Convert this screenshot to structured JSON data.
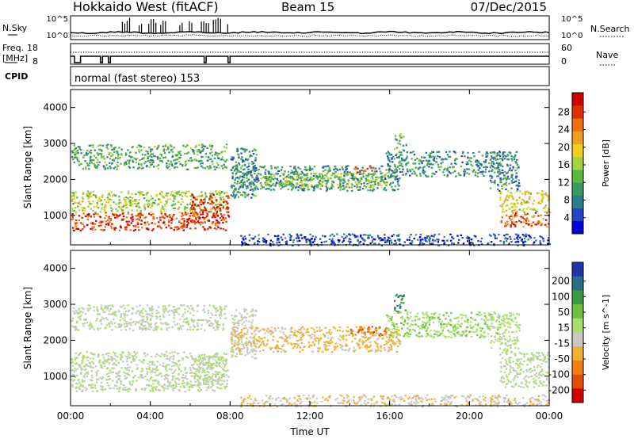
{
  "header": {
    "station": "Hokkaido West (fitACF)",
    "beam": "Beam 15",
    "date": "07/Dec/2015"
  },
  "strips": {
    "nsky_label": "N.Sky",
    "nsky_ticks": [
      "10^5",
      "10^0"
    ],
    "nsearch_label": "N.Search",
    "nsearch_ticks": [
      "10^5",
      "10^0"
    ],
    "freq_label_1": "Freq.",
    "freq_label_2": "[MHz]",
    "freq_ticks": [
      "18",
      "8"
    ],
    "nave_label": "Nave",
    "nave_ticks": [
      "60",
      "0"
    ],
    "cpid_label": "CPID",
    "cpid_text": "normal (fast stereo) 153"
  },
  "chart_data": [
    {
      "type": "heatmap",
      "title": "",
      "xlabel": "Time UT",
      "ylabel": "Slant Range [km]",
      "xlim": [
        0,
        24
      ],
      "ylim": [
        180,
        4500
      ],
      "xticks": [
        "00:00",
        "04:00",
        "08:00",
        "12:00",
        "16:00",
        "20:00",
        "00:00"
      ],
      "yticks": [
        "1000",
        "2000",
        "3000",
        "4000"
      ],
      "colorbar": {
        "label": "Power [dB]",
        "ticks": [
          "4",
          "8",
          "12",
          "16",
          "20",
          "24",
          "28"
        ],
        "colors": [
          "#0000dd",
          "#2244cc",
          "#2e7d8c",
          "#3c9a60",
          "#58b840",
          "#a8d040",
          "#f0d020",
          "#f0a020",
          "#f07010",
          "#e03000",
          "#d00000"
        ]
      },
      "regions": [
        {
          "t0": 0.0,
          "t1": 7.8,
          "r0": 600,
          "r1": 1100,
          "value": 26
        },
        {
          "t0": 0.0,
          "t1": 7.8,
          "r0": 1100,
          "r1": 1700,
          "value": 16
        },
        {
          "t0": 0.0,
          "t1": 7.8,
          "r0": 2300,
          "r1": 3000,
          "value": 12
        },
        {
          "t0": 6.0,
          "t1": 7.9,
          "r0": 800,
          "r1": 1600,
          "value": 27
        },
        {
          "t0": 8.0,
          "t1": 9.3,
          "r0": 1500,
          "r1": 2900,
          "value": 10
        },
        {
          "t0": 8.0,
          "t1": 16.5,
          "r0": 1700,
          "r1": 2400,
          "value": 10
        },
        {
          "t0": 9.5,
          "t1": 15.8,
          "r0": 1800,
          "r1": 2200,
          "value": 15
        },
        {
          "t0": 14.2,
          "t1": 15.2,
          "r0": 2200,
          "r1": 2400,
          "value": 24
        },
        {
          "t0": 15.8,
          "t1": 21.5,
          "r0": 2100,
          "r1": 2800,
          "value": 10
        },
        {
          "t0": 16.2,
          "t1": 16.8,
          "r0": 2800,
          "r1": 3300,
          "value": 12
        },
        {
          "t0": 8.5,
          "t1": 24.0,
          "r0": 180,
          "r1": 500,
          "value": 6
        },
        {
          "t0": 21.5,
          "t1": 24.0,
          "r0": 700,
          "r1": 1100,
          "value": 25
        },
        {
          "t0": 21.5,
          "t1": 24.0,
          "r0": 1100,
          "r1": 1700,
          "value": 18
        },
        {
          "t0": 21.0,
          "t1": 22.5,
          "r0": 1700,
          "r1": 2800,
          "value": 10
        }
      ]
    },
    {
      "type": "heatmap",
      "title": "",
      "xlabel": "Time UT",
      "ylabel": "Slant Range [km]",
      "xlim": [
        0,
        24
      ],
      "ylim": [
        180,
        4500
      ],
      "xticks": [
        "00:00",
        "04:00",
        "08:00",
        "12:00",
        "16:00",
        "20:00",
        "00:00"
      ],
      "yticks": [
        "1000",
        "2000",
        "3000",
        "4000"
      ],
      "colorbar": {
        "label": "Velocity [m s^-1]",
        "ticks": [
          "200",
          "100",
          "50",
          "15",
          "-15",
          "-50",
          "-100",
          "-200"
        ],
        "colors": [
          "#2233aa",
          "#2a6a8a",
          "#3a9a40",
          "#70c040",
          "#a8e070",
          "#c8c8c0",
          "#f0b030",
          "#f08010",
          "#e05000",
          "#d00000"
        ]
      },
      "regions": [
        {
          "t0": 0.0,
          "t1": 7.8,
          "r0": 600,
          "r1": 1700,
          "value": 0
        },
        {
          "t0": 0.0,
          "t1": 7.8,
          "r0": 2300,
          "r1": 3000,
          "value": -10
        },
        {
          "t0": 6.0,
          "t1": 7.9,
          "r0": 800,
          "r1": 1600,
          "value": 5
        },
        {
          "t0": 8.0,
          "t1": 9.3,
          "r0": 1500,
          "r1": 2900,
          "value": -20
        },
        {
          "t0": 8.0,
          "t1": 16.5,
          "r0": 1700,
          "r1": 2400,
          "value": -60
        },
        {
          "t0": 14.0,
          "t1": 15.8,
          "r0": 2150,
          "r1": 2400,
          "value": -150
        },
        {
          "t0": 15.8,
          "t1": 21.5,
          "r0": 2100,
          "r1": 2800,
          "value": 40
        },
        {
          "t0": 16.2,
          "t1": 16.8,
          "r0": 2800,
          "r1": 3300,
          "value": 150
        },
        {
          "t0": 8.5,
          "t1": 24.0,
          "r0": 180,
          "r1": 500,
          "value": -40
        },
        {
          "t0": 21.5,
          "t1": 24.0,
          "r0": 700,
          "r1": 1700,
          "value": 0
        },
        {
          "t0": 21.0,
          "t1": 22.5,
          "r0": 1700,
          "r1": 2800,
          "value": 20
        }
      ]
    }
  ]
}
